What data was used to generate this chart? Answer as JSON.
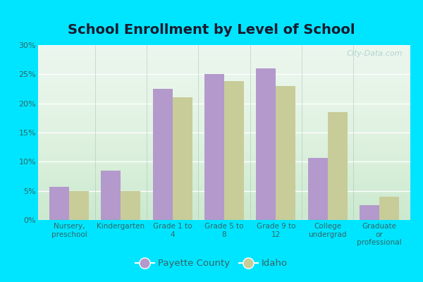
{
  "title": "School Enrollment by Level of School",
  "categories": [
    "Nursery,\npreschool",
    "Kindergarten",
    "Grade 1 to\n4",
    "Grade 5 to\n8",
    "Grade 9 to\n12",
    "College\nundergrad",
    "Graduate\nor\nprofessional"
  ],
  "payette_values": [
    5.7,
    8.5,
    22.5,
    25.0,
    26.0,
    10.7,
    2.5
  ],
  "idaho_values": [
    5.0,
    5.0,
    21.0,
    23.8,
    23.0,
    18.5,
    4.0
  ],
  "payette_color": "#b399cc",
  "idaho_color": "#c8cc99",
  "background_color_top": "#f0faf0",
  "background_color_bottom": "#d8f0e0",
  "outer_background": "#00e5ff",
  "title_fontsize": 14,
  "title_color": "#1a1a2e",
  "ylim": [
    0,
    30
  ],
  "yticks": [
    0,
    5,
    10,
    15,
    20,
    25,
    30
  ],
  "legend_labels": [
    "Payette County",
    "Idaho"
  ],
  "bar_width": 0.38,
  "grid_color": "#ffffff",
  "tick_color": "#336666",
  "watermark": "City-Data.com"
}
